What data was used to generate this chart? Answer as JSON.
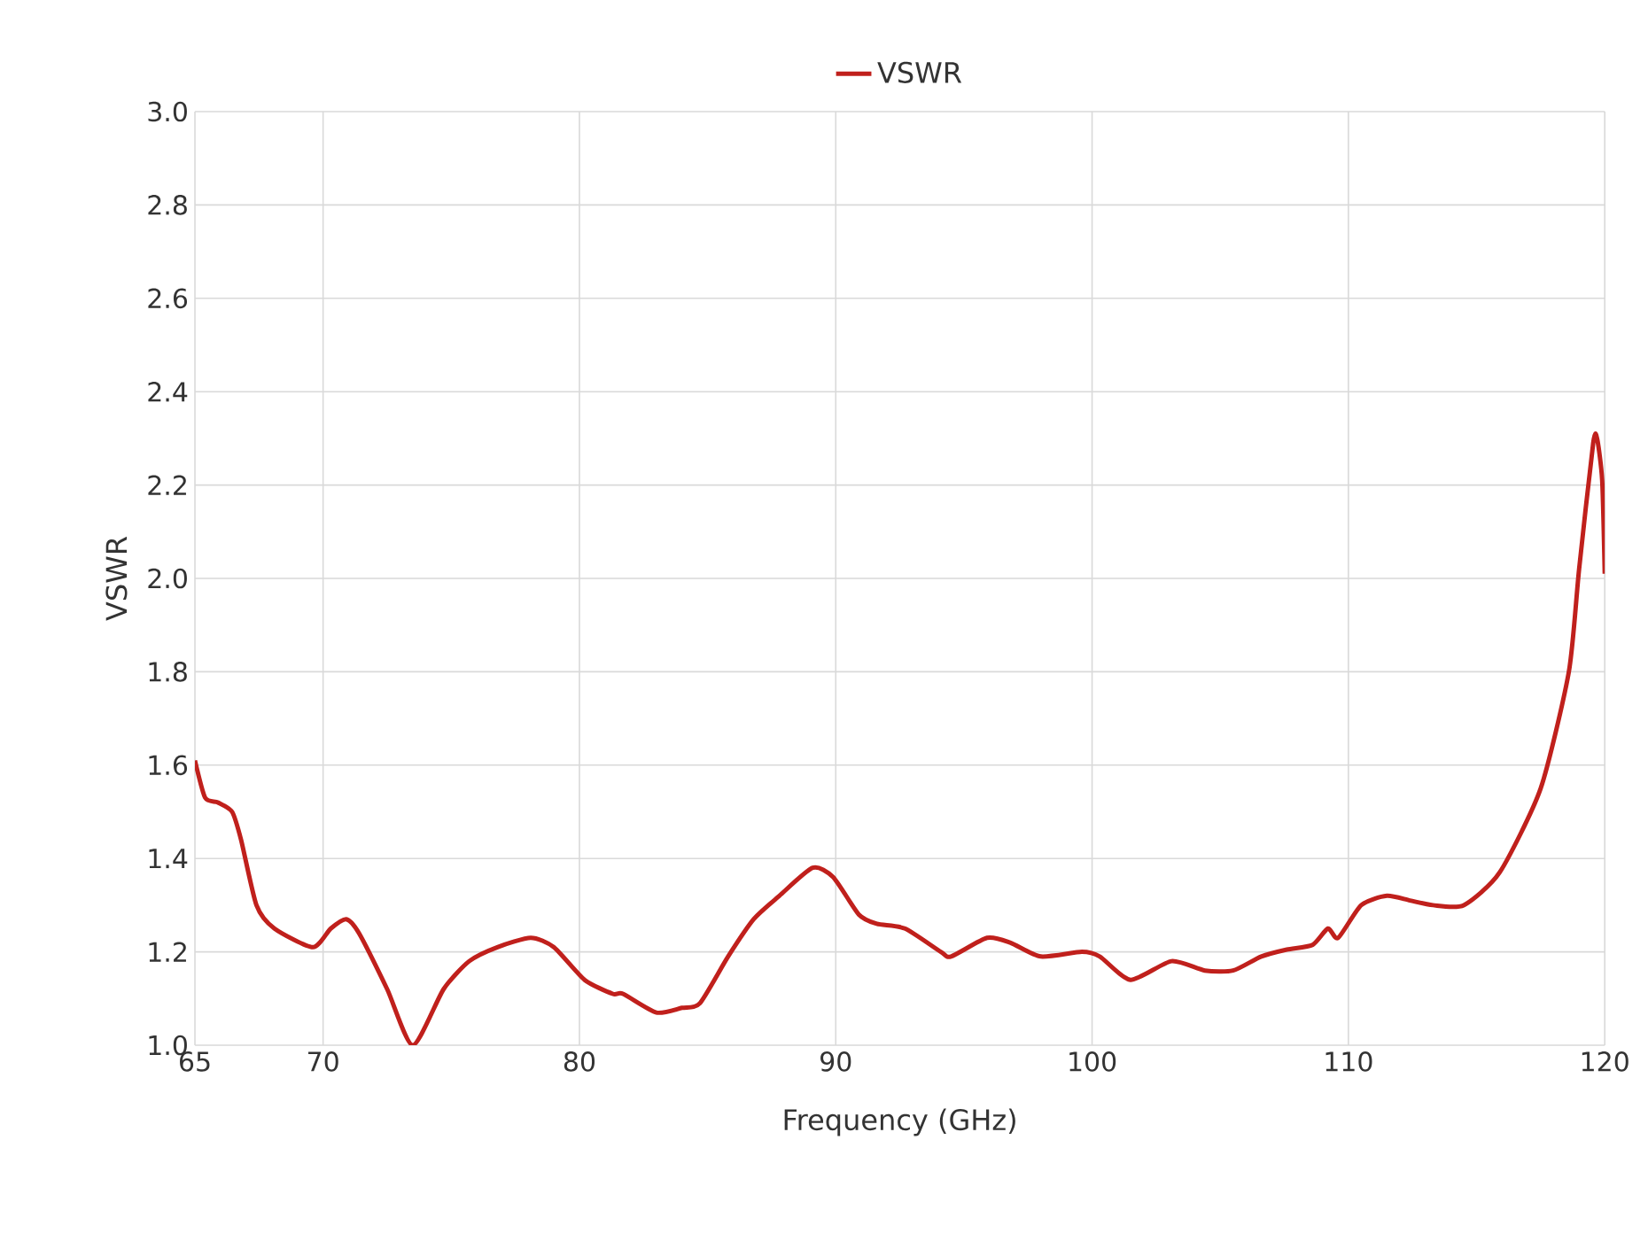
{
  "chart_data": {
    "type": "line",
    "xlabel": "Frequency (GHz)",
    "ylabel": "VSWR",
    "xlim": [
      65,
      120
    ],
    "xticks": [
      65,
      70,
      80,
      90,
      100,
      110,
      120
    ],
    "ylim": [
      1.0,
      3.0
    ],
    "yticks": [
      {
        "value": 1.0,
        "label": "1.0"
      },
      {
        "value": 1.2,
        "label": "1.2"
      },
      {
        "value": 1.4,
        "label": "1.4"
      },
      {
        "value": 1.6,
        "label": "1.6"
      },
      {
        "value": 1.8,
        "label": "1.8"
      },
      {
        "value": 2.0,
        "label": "2.0"
      },
      {
        "value": 2.2,
        "label": "2.2"
      },
      {
        "value": 2.4,
        "label": "2.4"
      },
      {
        "value": 2.6,
        "label": "2.6"
      },
      {
        "value": 2.8,
        "label": "2.8"
      },
      {
        "value": 3.0,
        "label": "3.0"
      }
    ],
    "grid": true,
    "legend": "top",
    "marker": "none",
    "line_style": "solid",
    "series": [
      {
        "name": "VSWR",
        "color": "#c0201c",
        "x": [
          65.0,
          65.4,
          65.9,
          66.45,
          66.8,
          67.4,
          68.1,
          69.6,
          70.3,
          70.9,
          71.4,
          72.5,
          73.5,
          74.7,
          75.7,
          76.8,
          78.1,
          79.0,
          80.2,
          81.3,
          81.7,
          83.0,
          84.0,
          84.7,
          85.8,
          86.8,
          87.8,
          89.1,
          89.9,
          90.9,
          91.6,
          92.7,
          94.1,
          94.5,
          95.9,
          96.8,
          98.0,
          99.6,
          100.3,
          101.5,
          103.1,
          104.4,
          105.5,
          106.6,
          107.6,
          108.6,
          109.2,
          109.6,
          110.5,
          111.5,
          112.4,
          113.3,
          114.5,
          115.9,
          117.5,
          118.6,
          119.0,
          119.55,
          119.7,
          119.9,
          120.0
        ],
        "values": [
          1.61,
          1.53,
          1.52,
          1.5,
          1.44,
          1.3,
          1.25,
          1.21,
          1.25,
          1.27,
          1.24,
          1.12,
          1.0,
          1.12,
          1.18,
          1.21,
          1.23,
          1.21,
          1.14,
          1.11,
          1.11,
          1.07,
          1.08,
          1.09,
          1.19,
          1.27,
          1.32,
          1.38,
          1.36,
          1.28,
          1.26,
          1.25,
          1.2,
          1.19,
          1.23,
          1.22,
          1.19,
          1.2,
          1.19,
          1.14,
          1.18,
          1.16,
          1.16,
          1.19,
          1.205,
          1.215,
          1.25,
          1.23,
          1.3,
          1.32,
          1.31,
          1.3,
          1.3,
          1.37,
          1.55,
          1.8,
          2.02,
          2.29,
          2.3,
          2.21,
          2.01
        ]
      }
    ]
  }
}
